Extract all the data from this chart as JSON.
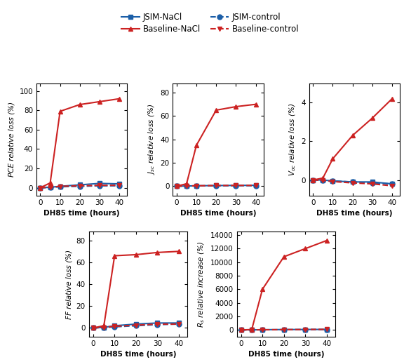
{
  "x": [
    0,
    5,
    10,
    20,
    30,
    40
  ],
  "series": {
    "JSIM_NaCl": {
      "PCE": [
        0,
        0.5,
        1.5,
        3.0,
        4.5,
        4.0
      ],
      "Jsc": [
        0,
        0.1,
        0.3,
        0.5,
        0.6,
        0.7
      ],
      "Voc": [
        0,
        0.0,
        -0.05,
        -0.1,
        -0.1,
        -0.2
      ],
      "FF": [
        0,
        0.5,
        2.0,
        3.5,
        4.5,
        4.5
      ],
      "Rs": [
        0,
        10,
        30,
        50,
        60,
        70
      ]
    },
    "JSIM_control": {
      "PCE": [
        0,
        0.3,
        1.0,
        1.5,
        2.0,
        2.0
      ],
      "Jsc": [
        0,
        0.1,
        0.2,
        0.3,
        0.4,
        0.4
      ],
      "Voc": [
        0,
        -0.02,
        -0.05,
        -0.1,
        -0.15,
        -0.2
      ],
      "FF": [
        0,
        0.3,
        1.0,
        2.0,
        3.0,
        3.5
      ],
      "Rs": [
        0,
        5,
        15,
        25,
        35,
        40
      ]
    },
    "Baseline_NaCl": {
      "PCE": [
        0,
        5,
        79,
        86,
        89,
        92
      ],
      "Jsc": [
        0,
        2,
        35,
        65,
        68,
        70
      ],
      "Voc": [
        0,
        0.1,
        1.1,
        2.3,
        3.2,
        4.2
      ],
      "FF": [
        0,
        2,
        66,
        67,
        69,
        70
      ],
      "Rs": [
        0,
        50,
        6000,
        10800,
        12000,
        13200
      ]
    },
    "Baseline_control": {
      "PCE": [
        0,
        0.5,
        1.5,
        2.0,
        2.5,
        2.5
      ],
      "Jsc": [
        0,
        0.1,
        0.3,
        0.5,
        0.6,
        0.6
      ],
      "Voc": [
        0,
        -0.02,
        -0.08,
        -0.15,
        -0.2,
        -0.3
      ],
      "FF": [
        0,
        0.5,
        1.5,
        2.5,
        3.5,
        3.5
      ],
      "Rs": [
        0,
        10,
        20,
        40,
        60,
        80
      ]
    }
  },
  "colors": {
    "JSIM_NaCl": "#1c5fa8",
    "JSIM_control": "#1c5fa8",
    "Baseline_NaCl": "#cc2222",
    "Baseline_control": "#cc2222"
  },
  "markers": {
    "JSIM_NaCl": "s",
    "JSIM_control": "o",
    "Baseline_NaCl": "^",
    "Baseline_control": "v"
  },
  "linestyles": {
    "JSIM_NaCl": "-",
    "JSIM_control": "--",
    "Baseline_NaCl": "-",
    "Baseline_control": "--"
  },
  "ylabels": {
    "PCE": "PCE relative loss (%)",
    "Jsc": "$J_{sc}$ relative loss (%)",
    "Voc": "$V_{oc}$ relative loss (%)",
    "FF": "FF relative loss (%)",
    "Rs": "$R_s$ relative increase (%)"
  },
  "ylims": {
    "PCE": [
      -8,
      108
    ],
    "Jsc": [
      -8,
      88
    ],
    "Voc": [
      -0.8,
      5.0
    ],
    "FF": [
      -8,
      88
    ],
    "Rs": [
      -1000,
      14500
    ]
  },
  "yticks": {
    "PCE": [
      0,
      20,
      40,
      60,
      80,
      100
    ],
    "Jsc": [
      0,
      20,
      40,
      60,
      80
    ],
    "Voc": [
      0,
      2,
      4
    ],
    "FF": [
      0,
      20,
      40,
      60,
      80
    ],
    "Rs": [
      0,
      2000,
      4000,
      6000,
      8000,
      10000,
      12000,
      14000
    ]
  },
  "xlabel": "DH85 time (hours)",
  "xticks": [
    0,
    10,
    20,
    30,
    40
  ],
  "legend_labels": {
    "JSIM_NaCl": "JSIM-NaCl",
    "JSIM_control": "JSIM-control",
    "Baseline_NaCl": "Baseline-NaCl",
    "Baseline_control": "Baseline-control"
  },
  "background_color": "#ffffff",
  "markersize": 5,
  "linewidth": 1.5,
  "tick_fontsize": 7.5,
  "label_fontsize": 7.5,
  "legend_fontsize": 8.5
}
